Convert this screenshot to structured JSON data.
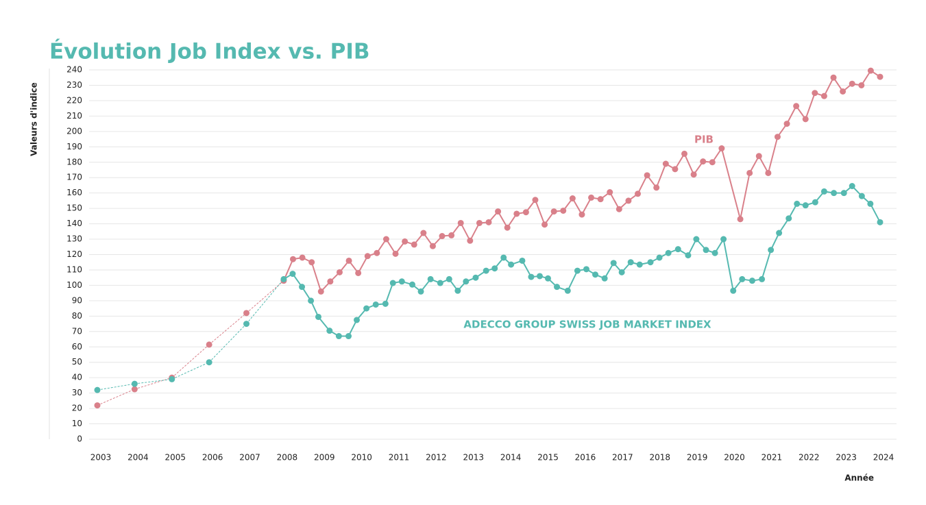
{
  "chart_data": {
    "type": "line",
    "title": "Évolution Job Index vs. PIB",
    "y_label": "Valeurs d'indice",
    "x_label": "Année",
    "xlim": [
      2003,
      2024
    ],
    "xticks": [
      2003,
      2004,
      2005,
      2006,
      2007,
      2008,
      2009,
      2010,
      2011,
      2012,
      2013,
      2014,
      2015,
      2016,
      2017,
      2018,
      2019,
      2020,
      2021,
      2022,
      2023,
      2024
    ],
    "ylim": [
      0,
      240
    ],
    "yticks": [
      0,
      10,
      20,
      30,
      40,
      50,
      60,
      70,
      80,
      90,
      100,
      110,
      120,
      130,
      140,
      150,
      160,
      170,
      180,
      190,
      200,
      210,
      220,
      230,
      240
    ],
    "grid": true,
    "dashed_until": 2008,
    "series": [
      {
        "name": "PIB",
        "color": "#d9808a",
        "x": [
          2003,
          2004,
          2005,
          2006,
          2007,
          2008,
          2008.25,
          2008.5,
          2008.75,
          2009,
          2009.25,
          2009.5,
          2009.75,
          2010,
          2010.25,
          2010.5,
          2010.75,
          2011,
          2011.25,
          2011.5,
          2011.75,
          2012,
          2012.25,
          2012.5,
          2012.75,
          2013,
          2013.25,
          2013.5,
          2013.75,
          2014,
          2014.25,
          2014.5,
          2014.75,
          2015,
          2015.25,
          2015.5,
          2015.75,
          2016,
          2016.25,
          2016.5,
          2016.75,
          2017,
          2017.25,
          2017.5,
          2017.75,
          2018,
          2018.25,
          2018.5,
          2018.75,
          2019,
          2019.25,
          2019.5,
          2019.75,
          2020.25,
          2020.5,
          2020.75,
          2021,
          2021.25,
          2021.5,
          2021.75,
          2022,
          2022.25,
          2022.5,
          2022.75,
          2023,
          2023.25,
          2023.5,
          2023.75,
          2024
        ],
        "values": [
          22,
          32.5,
          40,
          61.5,
          82,
          103,
          117,
          118,
          115,
          96,
          102.5,
          108.5,
          116,
          108,
          119,
          121,
          130,
          120.5,
          128.5,
          126.5,
          134,
          125.5,
          132,
          132.5,
          140.5,
          129,
          140.5,
          141,
          148,
          137.5,
          146.5,
          147.5,
          155.5,
          139.5,
          148,
          148.5,
          156.5,
          146,
          157,
          156,
          160.5,
          149.5,
          155,
          159.5,
          171.5,
          163.5,
          179,
          175.5,
          185.5,
          172,
          180.5,
          180,
          189,
          143,
          173,
          184,
          173,
          196.5,
          205,
          216.5,
          208,
          225,
          223,
          235,
          226,
          231,
          230,
          239.5,
          235.5
        ]
      },
      {
        "name": "ADECCO GROUP SWISS JOB MARKET INDEX",
        "color": "#55b9b0",
        "x": [
          2003,
          2004,
          2005,
          2006,
          2007,
          2008,
          2008.24,
          2008.49,
          2008.73,
          2008.93,
          2009.23,
          2009.48,
          2009.74,
          2009.96,
          2010.22,
          2010.47,
          2010.73,
          2010.93,
          2011.17,
          2011.45,
          2011.68,
          2011.94,
          2012.2,
          2012.44,
          2012.67,
          2012.89,
          2013.15,
          2013.43,
          2013.66,
          2013.9,
          2014.1,
          2014.4,
          2014.64,
          2014.87,
          2015.09,
          2015.33,
          2015.62,
          2015.88,
          2016.12,
          2016.36,
          2016.61,
          2016.85,
          2017.07,
          2017.31,
          2017.55,
          2017.84,
          2018.08,
          2018.32,
          2018.58,
          2018.85,
          2019.07,
          2019.33,
          2019.57,
          2019.8,
          2020.06,
          2020.3,
          2020.57,
          2020.83,
          2021.07,
          2021.29,
          2021.55,
          2021.77,
          2022,
          2022.26,
          2022.5,
          2022.76,
          2023.03,
          2023.25,
          2023.51,
          2023.74,
          2024
        ],
        "values": [
          32,
          36,
          39,
          50,
          75,
          104,
          107.5,
          99,
          90,
          79.5,
          70.5,
          67,
          67,
          77.5,
          85,
          87.5,
          88,
          101.5,
          102.5,
          100.5,
          96,
          104,
          101.5,
          104,
          96.5,
          102.5,
          105,
          109.5,
          111,
          118,
          113.5,
          116,
          105.5,
          106,
          104.5,
          99,
          96.5,
          109.5,
          110.5,
          107,
          104.5,
          114.5,
          108.5,
          115,
          113.5,
          115,
          118,
          121,
          123.5,
          119.5,
          130,
          123,
          121,
          130,
          96.5,
          104,
          103,
          104,
          123,
          134,
          143.5,
          153,
          152,
          154,
          161,
          160,
          160,
          164.5,
          158,
          153,
          141
        ]
      }
    ]
  }
}
